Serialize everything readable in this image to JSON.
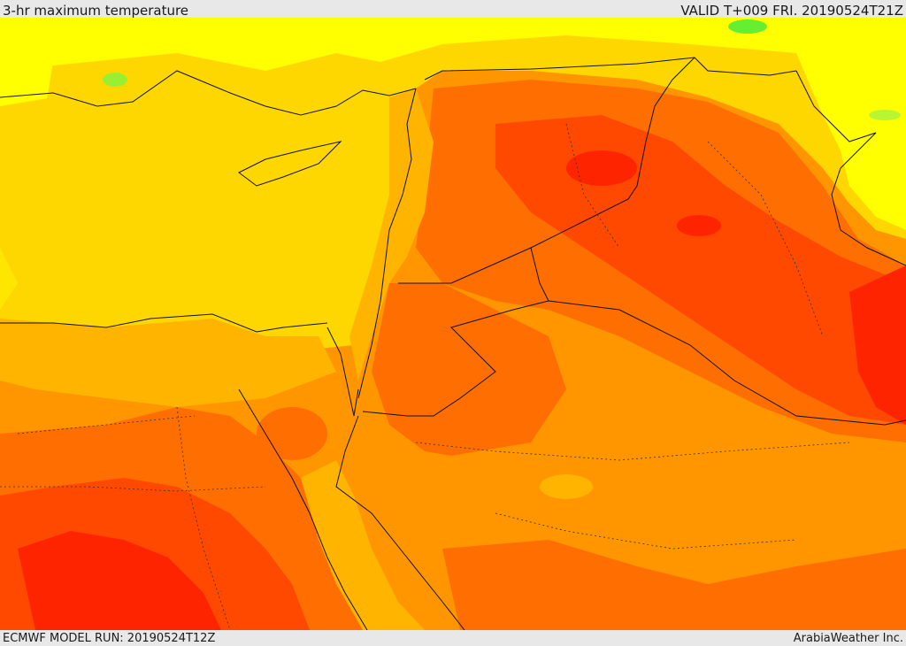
{
  "header": {
    "title": "3-hr maximum temperature",
    "valid": "VALID T+009 FRI. 20190524T21Z"
  },
  "footer": {
    "model_run": "ECMWF MODEL RUN: 20190524T12Z",
    "credit": "ArabiaWeather Inc."
  },
  "palette": {
    "cool_green": "#66ee33",
    "yellow": "#ffff00",
    "gold": "#ffd700",
    "light_orange": "#ffb400",
    "orange": "#ff9600",
    "dark_orange": "#ff6e00",
    "red_orange": "#ff4800",
    "red": "#ff2400",
    "sea": "#ffd700",
    "border_line": "#111111"
  }
}
